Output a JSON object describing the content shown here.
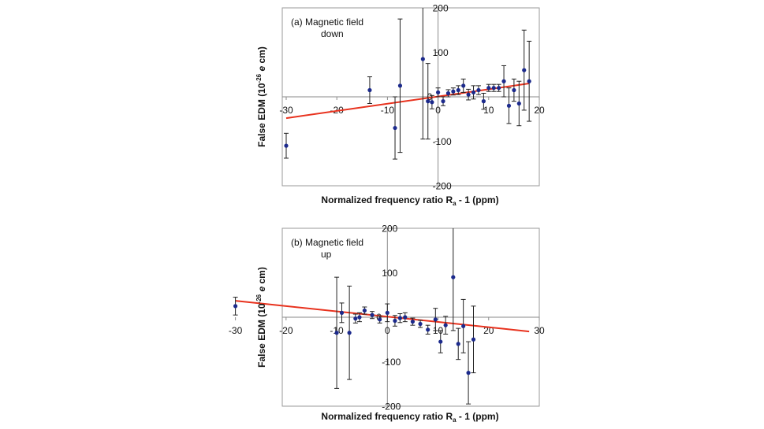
{
  "chart_data": [
    {
      "type": "scatter",
      "panel": "a",
      "annotation_lines": [
        "(a) Magnetic field",
        "down"
      ],
      "ylabel": "False EDM (10^-26 e cm)",
      "ylabel_parts": {
        "prefix": "False EDM (10",
        "exponent": "-26",
        "unit_italic": "e",
        "suffix": " cm)"
      },
      "xlabel": "Normalized frequency ratio R_a - 1 (ppm)",
      "xlabel_parts": {
        "prefix": "Normalized frequency ratio R",
        "subscript": "a",
        "suffix": " - 1 (ppm)"
      },
      "xlim": [
        -30,
        20
      ],
      "ylim": [
        -200,
        200
      ],
      "x_ticks": [
        -30,
        -20,
        -10,
        0,
        10,
        20
      ],
      "y_ticks": [
        -200,
        -100,
        100,
        200
      ],
      "y_zero_label": "0",
      "points": [
        {
          "x": -30,
          "y": -110,
          "err": 28
        },
        {
          "x": -13.5,
          "y": 15,
          "err": 30
        },
        {
          "x": -8.5,
          "y": -70,
          "err": 70
        },
        {
          "x": -7.5,
          "y": 25,
          "err": 150
        },
        {
          "x": -3,
          "y": 85,
          "err": 180
        },
        {
          "x": -2,
          "y": -10,
          "err": 85
        },
        {
          "x": -1.2,
          "y": -12,
          "err": 15
        },
        {
          "x": 0,
          "y": 10,
          "err": 10
        },
        {
          "x": 1,
          "y": -10,
          "err": 10
        },
        {
          "x": 2,
          "y": 8,
          "err": 8
        },
        {
          "x": 3,
          "y": 12,
          "err": 8
        },
        {
          "x": 4,
          "y": 15,
          "err": 10
        },
        {
          "x": 5,
          "y": 25,
          "err": 15
        },
        {
          "x": 6,
          "y": 5,
          "err": 12
        },
        {
          "x": 7,
          "y": 10,
          "err": 15
        },
        {
          "x": 8,
          "y": 15,
          "err": 10
        },
        {
          "x": 9,
          "y": -10,
          "err": 18
        },
        {
          "x": 10,
          "y": 20,
          "err": 8
        },
        {
          "x": 11,
          "y": 20,
          "err": 8
        },
        {
          "x": 12,
          "y": 20,
          "err": 8
        },
        {
          "x": 13,
          "y": 35,
          "err": 35
        },
        {
          "x": 14,
          "y": -20,
          "err": 40
        },
        {
          "x": 15,
          "y": 15,
          "err": 25
        },
        {
          "x": 16,
          "y": -15,
          "err": 50
        },
        {
          "x": 17,
          "y": 60,
          "err": 90
        },
        {
          "x": 18,
          "y": 35,
          "err": 90
        }
      ],
      "fit_line": {
        "x": [
          -30,
          18
        ],
        "y": [
          -48,
          30
        ],
        "color": "#e8321e"
      }
    },
    {
      "type": "scatter",
      "panel": "b",
      "annotation_lines": [
        "(b) Magnetic field",
        "up"
      ],
      "ylabel": "False EDM (10^-26 e cm)",
      "ylabel_parts": {
        "prefix": "False EDM (10",
        "exponent": "-26",
        "unit_italic": "e",
        "suffix": " cm)"
      },
      "xlabel": "Normalized frequency ratio R_a - 1 (ppm)",
      "xlabel_parts": {
        "prefix": "Normalized frequency ratio R",
        "subscript": "a",
        "suffix": " - 1 (ppm)"
      },
      "xlim": [
        -30,
        30
      ],
      "ylim": [
        -200,
        200
      ],
      "x_ticks": [
        -30,
        -20,
        -10,
        0,
        10,
        20,
        30
      ],
      "y_ticks": [
        -200,
        -100,
        100,
        200
      ],
      "y_zero_label": "0",
      "points": [
        {
          "x": -30,
          "y": 25,
          "err": 20
        },
        {
          "x": -10,
          "y": -35,
          "err": 125
        },
        {
          "x": -9,
          "y": 10,
          "err": 22
        },
        {
          "x": -7.5,
          "y": -35,
          "err": 105
        },
        {
          "x": -6.3,
          "y": -3,
          "err": 10
        },
        {
          "x": -5.5,
          "y": 0,
          "err": 10
        },
        {
          "x": -4.5,
          "y": 15,
          "err": 8
        },
        {
          "x": -3,
          "y": 5,
          "err": 8
        },
        {
          "x": -1.5,
          "y": -5,
          "err": 8
        },
        {
          "x": 0,
          "y": 10,
          "err": 20
        },
        {
          "x": 1.5,
          "y": -8,
          "err": 12
        },
        {
          "x": 2.5,
          "y": -2,
          "err": 10
        },
        {
          "x": 3.5,
          "y": 0,
          "err": 10
        },
        {
          "x": 5,
          "y": -10,
          "err": 8
        },
        {
          "x": 6.5,
          "y": -15,
          "err": 8
        },
        {
          "x": 8,
          "y": -28,
          "err": 10
        },
        {
          "x": 9.5,
          "y": -5,
          "err": 25
        },
        {
          "x": 10.5,
          "y": -55,
          "err": 25
        },
        {
          "x": 11.5,
          "y": -18,
          "err": 20
        },
        {
          "x": 13,
          "y": 90,
          "err": 120
        },
        {
          "x": 14,
          "y": -60,
          "err": 35
        },
        {
          "x": 15,
          "y": -20,
          "err": 60
        },
        {
          "x": 16,
          "y": -125,
          "err": 70
        },
        {
          "x": 17,
          "y": -50,
          "err": 75
        }
      ],
      "fit_line": {
        "x": [
          -30,
          28
        ],
        "y": [
          37,
          -32
        ],
        "color": "#e8321e"
      }
    }
  ]
}
